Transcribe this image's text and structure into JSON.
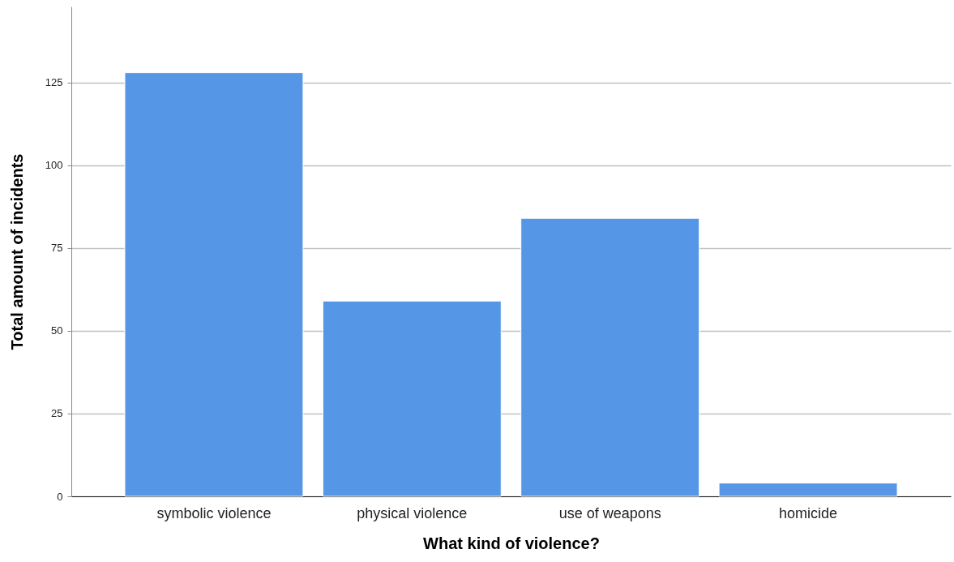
{
  "chart_data": {
    "type": "bar",
    "xlabel": "What kind of violence?",
    "ylabel": "Total amount of incidents",
    "categories": [
      "symbolic violence",
      "physical violence",
      "use of weapons",
      "homicide"
    ],
    "values": [
      128,
      59,
      84,
      4
    ],
    "color": "#5596e6",
    "ylim": [
      0,
      148
    ],
    "yticks": [
      0,
      25,
      50,
      75,
      100,
      125
    ],
    "grid": "y"
  }
}
